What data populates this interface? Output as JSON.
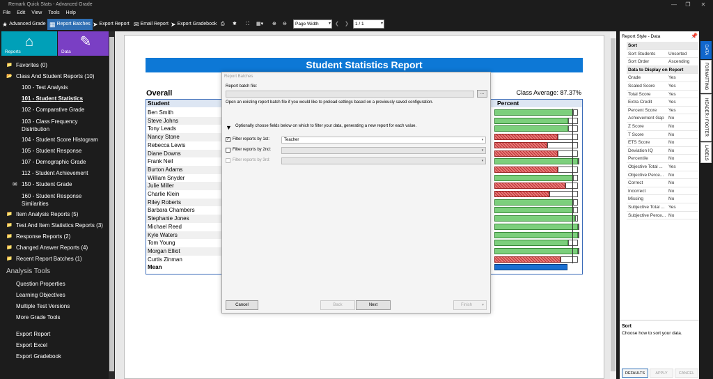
{
  "window": {
    "title": "Remark Quick Stats - Advanced Grade"
  },
  "menu": [
    "File",
    "Edit",
    "View",
    "Tools",
    "Help"
  ],
  "toolbar": {
    "advanced_grade": "Advanced Grade",
    "report_batches": "Report Batches",
    "export_report": "Export Report",
    "email_report": "Email Report",
    "export_gradebook": "Export Gradebook",
    "zoom_select": "Page Width",
    "page_indicator": "1 / 1"
  },
  "sidebar": {
    "reports_label": "Reports",
    "data_label": "Data",
    "items": [
      {
        "type": "folder",
        "label": "Favorites (0)"
      },
      {
        "type": "folder-open",
        "label": "Class And Student Reports (10)"
      },
      {
        "type": "sub",
        "label": "100 - Test Analysis"
      },
      {
        "type": "sub-bold",
        "label": "101 - Student Statistics"
      },
      {
        "type": "sub",
        "label": "102 - Comparative Grade"
      },
      {
        "type": "sub2",
        "label": "103 - Class Frequency",
        "label2": "Distribution"
      },
      {
        "type": "sub",
        "label": "104 - Student Score Histogram"
      },
      {
        "type": "sub",
        "label": "105 - Student Response"
      },
      {
        "type": "sub",
        "label": "107 - Demographic Grade"
      },
      {
        "type": "sub",
        "label": "112 - Student Achievement"
      },
      {
        "type": "sub-mail",
        "label": "150 - Student Grade"
      },
      {
        "type": "sub2",
        "label": "160 - Student Response",
        "label2": "Similarities"
      },
      {
        "type": "folder",
        "label": "Item Analysis Reports (5)"
      },
      {
        "type": "folder",
        "label": "Test And Item Statistics Reports (3)"
      },
      {
        "type": "folder",
        "label": "Response Reports (2)"
      },
      {
        "type": "folder",
        "label": "Changed Answer Reports (4)"
      },
      {
        "type": "folder",
        "label": "Recent Report Batches (1)"
      },
      {
        "type": "section",
        "label": "Analysis Tools"
      },
      {
        "type": "tool",
        "label": "Question Properties"
      },
      {
        "type": "tool",
        "label": "Learning Objectives"
      },
      {
        "type": "tool",
        "label": "Multiple Test Versions"
      },
      {
        "type": "tool",
        "label": "More Grade Tools"
      },
      {
        "type": "gap",
        "label": ""
      },
      {
        "type": "tool",
        "label": "Export Report"
      },
      {
        "type": "tool",
        "label": "Export Excel"
      },
      {
        "type": "tool",
        "label": "Export Gradebook"
      }
    ]
  },
  "report": {
    "title": "Student Statistics Report",
    "section": "Overall",
    "class_average": "Class Average: 87.37%",
    "col_student": "Student",
    "col_percent": "Percent",
    "mean_label": "Mean",
    "students": [
      {
        "name": "Ben Smith",
        "pct": 0.94,
        "status": "pass"
      },
      {
        "name": "Steve Johns",
        "pct": 0.88,
        "status": "pass"
      },
      {
        "name": "Tony Leads",
        "pct": 0.88,
        "status": "pass"
      },
      {
        "name": "Nancy Stone",
        "pct": 0.76,
        "status": "fail"
      },
      {
        "name": "Rebecca Lewis",
        "pct": 0.63,
        "status": "fail"
      },
      {
        "name": "Diane Downs",
        "pct": 0.76,
        "status": "fail"
      },
      {
        "name": "Frank Neil",
        "pct": 1.0,
        "status": "pass"
      },
      {
        "name": "Burton Adams",
        "pct": 0.76,
        "status": "fail"
      },
      {
        "name": "William Snyder",
        "pct": 0.94,
        "status": "pass"
      },
      {
        "name": "Julie Miller",
        "pct": 0.85,
        "status": "fail"
      },
      {
        "name": "Charlie Klein",
        "pct": 0.66,
        "status": "fail"
      },
      {
        "name": "Riley Roberts",
        "pct": 0.94,
        "status": "pass"
      },
      {
        "name": "Barbara Chambers",
        "pct": 0.94,
        "status": "pass"
      },
      {
        "name": "Stephanie Jones",
        "pct": 0.97,
        "status": "pass"
      },
      {
        "name": "Michael Reed",
        "pct": 1.0,
        "status": "pass"
      },
      {
        "name": "Kyle Waters",
        "pct": 1.0,
        "status": "pass"
      },
      {
        "name": "Tom Young",
        "pct": 0.88,
        "status": "pass"
      },
      {
        "name": "Morgan Elliot",
        "pct": 1.0,
        "status": "pass"
      },
      {
        "name": "Curtis Zinman",
        "pct": 0.79,
        "status": "fail"
      }
    ],
    "mean_pct": 0.8737
  },
  "dialog": {
    "title": "Report Batches",
    "file_label": "Report batch file:",
    "browse": "...",
    "open_hint": "Open an existing report batch file if you would like to preload settings based on a previously saved configuration.",
    "filter_hint": "Optionally choose fields below on which to filter your data, generating a new report for each value.",
    "filter1_label": "Filter reports by 1st:",
    "filter1_value": "Teacher",
    "filter2_label": "Filter reports by 2nd:",
    "filter3_label": "Filter reports by 3rd:",
    "cancel": "Cancel",
    "back": "Back",
    "next": "Next",
    "finish": "Finish"
  },
  "panel": {
    "title": "Report Style - Data",
    "rows": [
      {
        "cat": true,
        "k": "Sort",
        "v": ""
      },
      {
        "k": "Sort Students",
        "v": "Unsorted"
      },
      {
        "k": "Sort Order",
        "v": "Ascending"
      },
      {
        "cat": true,
        "k": "Data to Display on Report",
        "v": ""
      },
      {
        "k": "Grade",
        "v": "Yes"
      },
      {
        "k": "Scaled Score",
        "v": "Yes"
      },
      {
        "k": "Total Score",
        "v": "Yes"
      },
      {
        "k": "Extra Credit",
        "v": "Yes"
      },
      {
        "k": "Percent Score",
        "v": "Yes"
      },
      {
        "k": "Achievement Gap",
        "v": "No"
      },
      {
        "k": "Z Score",
        "v": "No"
      },
      {
        "k": "T Score",
        "v": "No"
      },
      {
        "k": "ETS Score",
        "v": "No"
      },
      {
        "k": "Deviation IQ",
        "v": "No"
      },
      {
        "k": "Percentile",
        "v": "No"
      },
      {
        "k": "Objective Total ...",
        "v": "Yes"
      },
      {
        "k": "Objective Perce...",
        "v": "No"
      },
      {
        "k": "Correct",
        "v": "No"
      },
      {
        "k": "Incorrect",
        "v": "No"
      },
      {
        "k": "Missing",
        "v": "No"
      },
      {
        "k": "Subjective Total ...",
        "v": "Yes"
      },
      {
        "k": "Subjective Perce...",
        "v": "No"
      }
    ],
    "desc_title": "Sort",
    "desc_body": "Choose how to sort your data.",
    "btn_defaults": "DEFAULTS",
    "btn_apply": "APPLY",
    "btn_cancel": "CANCEL",
    "tabs": [
      "DATA",
      "FORMATTING",
      "HEADER / FOOTER",
      "LABELS"
    ]
  },
  "colors": {
    "accent": "#0d78d6",
    "reports_tile": "#00a0b8",
    "data_tile": "#7a3fc4",
    "pass_bar": "#7ccf7c",
    "fail_bar": "#e05a5a"
  }
}
